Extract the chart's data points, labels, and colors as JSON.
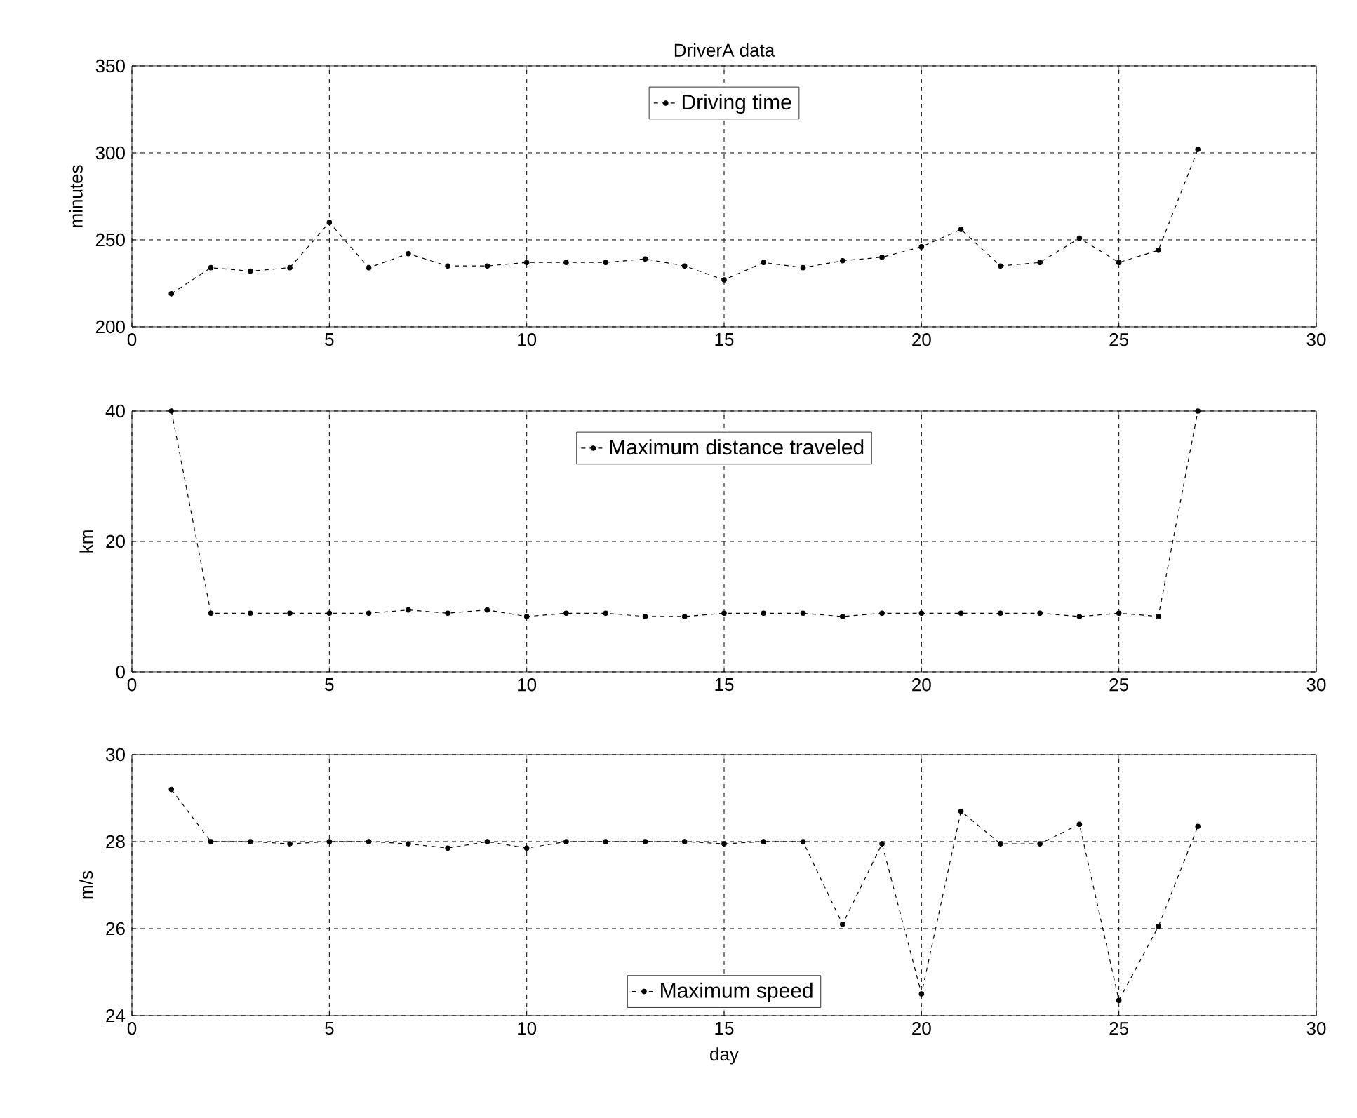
{
  "chart_data": [
    {
      "type": "line",
      "title": "DriverA data",
      "ylabel": "minutes",
      "x": [
        1,
        2,
        3,
        4,
        5,
        6,
        7,
        8,
        9,
        10,
        11,
        12,
        13,
        14,
        15,
        16,
        17,
        18,
        19,
        20,
        21,
        22,
        23,
        24,
        25,
        26,
        27
      ],
      "series": [
        {
          "name": "Driving time",
          "color": "#000000",
          "values": [
            219,
            234,
            232,
            234,
            260,
            234,
            242,
            235,
            235,
            237,
            237,
            237,
            239,
            235,
            227,
            237,
            234,
            238,
            240,
            246,
            256,
            235,
            237,
            251,
            237,
            244,
            302
          ]
        }
      ],
      "xlim": [
        0,
        30
      ],
      "xticks": [
        0,
        5,
        10,
        15,
        20,
        25,
        30
      ],
      "ylim": [
        200,
        350
      ],
      "yticks": [
        200,
        250,
        300,
        350
      ],
      "grid": true,
      "legend": "top",
      "marker": "circle",
      "line_style": "dashed"
    },
    {
      "type": "line",
      "ylabel": "km",
      "x": [
        1,
        2,
        3,
        4,
        5,
        6,
        7,
        8,
        9,
        10,
        11,
        12,
        13,
        14,
        15,
        16,
        17,
        18,
        19,
        20,
        21,
        22,
        23,
        24,
        25,
        26,
        27
      ],
      "series": [
        {
          "name": "Maximum distance traveled",
          "color": "#000000",
          "values": [
            40,
            9,
            9,
            9,
            9,
            9,
            9.5,
            9,
            9.5,
            8.5,
            9,
            9,
            8.5,
            8.5,
            9,
            9,
            9,
            8.5,
            9,
            9,
            9,
            9,
            9,
            8.5,
            9,
            8.5,
            40
          ]
        }
      ],
      "xlim": [
        0,
        30
      ],
      "xticks": [
        0,
        5,
        10,
        15,
        20,
        25,
        30
      ],
      "ylim": [
        0,
        40
      ],
      "yticks": [
        0,
        20,
        40
      ],
      "grid": true,
      "legend": "top",
      "marker": "circle",
      "line_style": "dashed"
    },
    {
      "type": "line",
      "xlabel": "day",
      "ylabel": "m/s",
      "x": [
        1,
        2,
        3,
        4,
        5,
        6,
        7,
        8,
        9,
        10,
        11,
        12,
        13,
        14,
        15,
        16,
        17,
        18,
        19,
        20,
        21,
        22,
        23,
        24,
        25,
        26,
        27
      ],
      "series": [
        {
          "name": "Maximum speed",
          "color": "#000000",
          "values": [
            29.2,
            28,
            28,
            27.95,
            28,
            28,
            27.95,
            27.85,
            28,
            27.85,
            28,
            28,
            28,
            28,
            27.95,
            28,
            28,
            26.1,
            27.95,
            24.5,
            28.7,
            27.95,
            27.95,
            28.4,
            24.35,
            26.05,
            28.35
          ]
        }
      ],
      "xlim": [
        0,
        30
      ],
      "xticks": [
        0,
        5,
        10,
        15,
        20,
        25,
        30
      ],
      "ylim": [
        24,
        30
      ],
      "yticks": [
        24,
        26,
        28,
        30
      ],
      "grid": true,
      "legend": "bottom",
      "marker": "circle",
      "line_style": "dashed"
    }
  ]
}
